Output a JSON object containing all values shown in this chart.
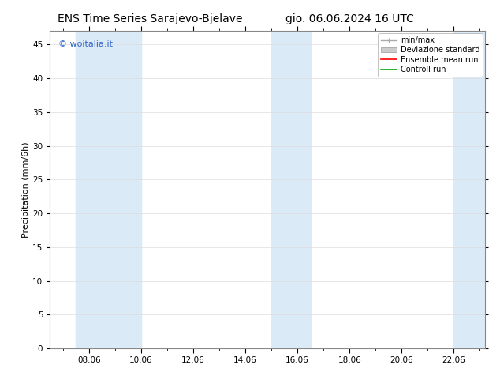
{
  "title_left": "ENS Time Series Sarajevo-Bjelave",
  "title_right": "gio. 06.06.2024 16 UTC",
  "ylabel": "Precipitation (mm/6h)",
  "watermark": "© woitalia.it",
  "watermark_color": "#3366cc",
  "ylim": [
    0,
    47
  ],
  "yticks": [
    0,
    5,
    10,
    15,
    20,
    25,
    30,
    35,
    40,
    45
  ],
  "background_color": "#ffffff",
  "plot_bg_color": "#ffffff",
  "shaded_band_color": "#daeaf7",
  "shaded_bands": [
    {
      "xmin": 7.5,
      "xmax": 10.0
    },
    {
      "xmin": 15.0,
      "xmax": 16.5
    },
    {
      "xmin": 22.0,
      "xmax": 23.2
    }
  ],
  "xtick_labels": [
    "08.06",
    "10.06",
    "12.06",
    "14.06",
    "16.06",
    "18.06",
    "20.06",
    "22.06"
  ],
  "xtick_positions": [
    8,
    10,
    12,
    14,
    16,
    18,
    20,
    22
  ],
  "xlim": [
    6.5,
    23.2
  ],
  "font_name": "DejaVu Sans",
  "title_fontsize": 10,
  "axis_label_fontsize": 8,
  "tick_fontsize": 7.5,
  "watermark_fontsize": 8,
  "legend_fontsize": 7
}
